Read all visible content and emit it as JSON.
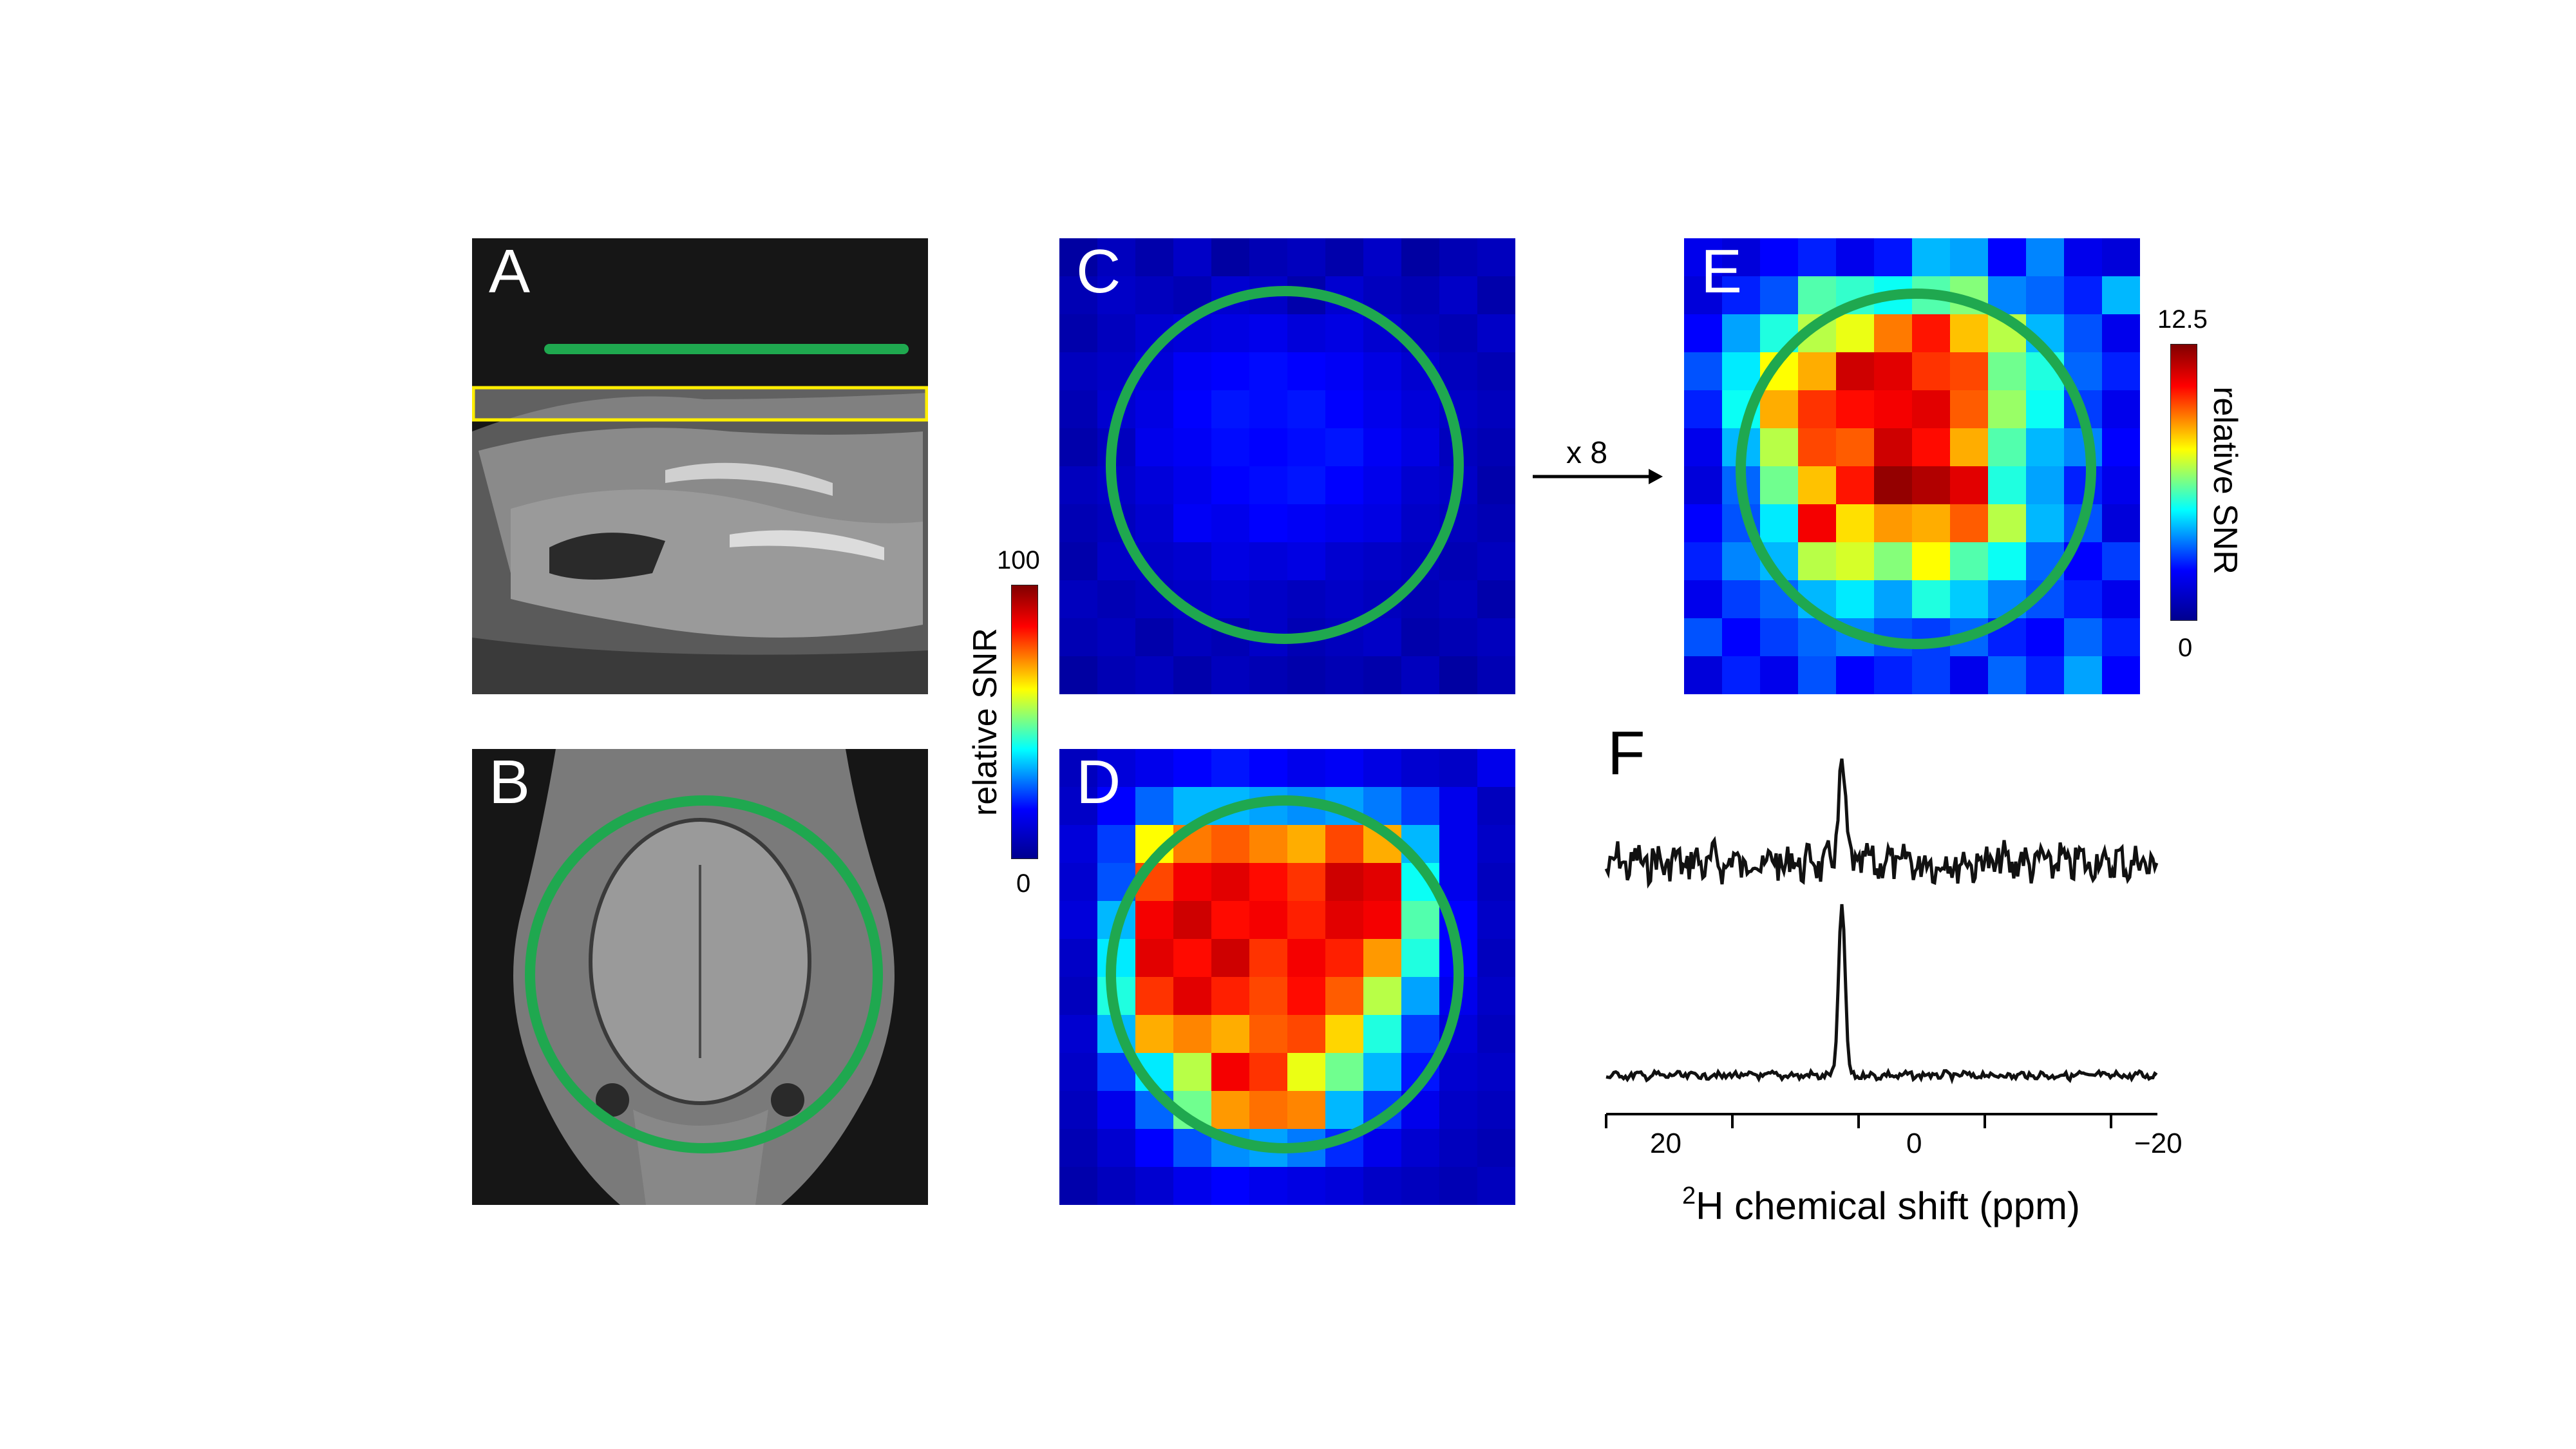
{
  "panels": {
    "a": {
      "letter": "A"
    },
    "b": {
      "letter": "B"
    },
    "c": {
      "letter": "C"
    },
    "d": {
      "letter": "D"
    },
    "e": {
      "letter": "E"
    },
    "f": {
      "letter": "F"
    }
  },
  "colorbar_left": {
    "title": "relative SNR",
    "max": "100",
    "min": "0"
  },
  "colorbar_right": {
    "title": "relative SNR",
    "max": "12.5",
    "min": "0"
  },
  "arrow_label": "x 8",
  "spectrum_axis": {
    "ticks": [
      "20",
      "0",
      "−20"
    ],
    "label_sup": "2",
    "label_text": "H chemical shift (ppm)"
  },
  "colors": {
    "overlay_circle": "#1fa84f",
    "slice_box": "#ffee00",
    "colormap": [
      "#00008f",
      "#0000ff",
      "#00ffff",
      "#ffff00",
      "#ff0000",
      "#800000"
    ]
  },
  "heatmaps": {
    "c": [
      [
        0.02,
        0.05,
        0.03,
        0.06,
        0.02,
        0.04,
        0.05,
        0.03,
        0.06,
        0.02,
        0.04,
        0.05
      ],
      [
        0.04,
        0.06,
        0.05,
        0.04,
        0.07,
        0.06,
        0.03,
        0.07,
        0.05,
        0.04,
        0.06,
        0.03
      ],
      [
        0.03,
        0.05,
        0.07,
        0.08,
        0.09,
        0.1,
        0.08,
        0.09,
        0.07,
        0.05,
        0.04,
        0.06
      ],
      [
        0.05,
        0.06,
        0.08,
        0.11,
        0.12,
        0.13,
        0.12,
        0.11,
        0.09,
        0.07,
        0.05,
        0.04
      ],
      [
        0.04,
        0.07,
        0.09,
        0.12,
        0.14,
        0.13,
        0.14,
        0.12,
        0.1,
        0.08,
        0.06,
        0.05
      ],
      [
        0.03,
        0.05,
        0.1,
        0.11,
        0.13,
        0.12,
        0.13,
        0.14,
        0.11,
        0.09,
        0.05,
        0.04
      ],
      [
        0.05,
        0.06,
        0.08,
        0.1,
        0.12,
        0.13,
        0.14,
        0.12,
        0.1,
        0.07,
        0.06,
        0.03
      ],
      [
        0.04,
        0.05,
        0.07,
        0.11,
        0.1,
        0.12,
        0.11,
        0.1,
        0.09,
        0.06,
        0.05,
        0.04
      ],
      [
        0.03,
        0.06,
        0.06,
        0.07,
        0.09,
        0.08,
        0.09,
        0.07,
        0.06,
        0.05,
        0.04,
        0.05
      ],
      [
        0.05,
        0.04,
        0.05,
        0.06,
        0.07,
        0.06,
        0.05,
        0.06,
        0.05,
        0.04,
        0.05,
        0.03
      ],
      [
        0.04,
        0.05,
        0.03,
        0.05,
        0.04,
        0.06,
        0.04,
        0.05,
        0.06,
        0.03,
        0.04,
        0.05
      ],
      [
        0.02,
        0.04,
        0.05,
        0.03,
        0.05,
        0.04,
        0.03,
        0.04,
        0.03,
        0.05,
        0.02,
        0.04
      ]
    ],
    "d": [
      [
        0.05,
        0.08,
        0.1,
        0.12,
        0.14,
        0.12,
        0.1,
        0.11,
        0.09,
        0.07,
        0.06,
        0.1
      ],
      [
        0.06,
        0.12,
        0.22,
        0.3,
        0.3,
        0.28,
        0.26,
        0.28,
        0.24,
        0.18,
        0.1,
        0.05
      ],
      [
        0.08,
        0.18,
        0.62,
        0.75,
        0.78,
        0.74,
        0.7,
        0.8,
        0.7,
        0.3,
        0.1,
        0.06
      ],
      [
        0.07,
        0.2,
        0.8,
        0.88,
        0.9,
        0.86,
        0.82,
        0.92,
        0.9,
        0.38,
        0.1,
        0.05
      ],
      [
        0.08,
        0.3,
        0.88,
        0.92,
        0.86,
        0.88,
        0.84,
        0.9,
        0.88,
        0.45,
        0.12,
        0.06
      ],
      [
        0.06,
        0.35,
        0.9,
        0.86,
        0.92,
        0.82,
        0.88,
        0.84,
        0.72,
        0.4,
        0.12,
        0.05
      ],
      [
        0.05,
        0.4,
        0.82,
        0.9,
        0.84,
        0.8,
        0.86,
        0.78,
        0.55,
        0.28,
        0.1,
        0.06
      ],
      [
        0.07,
        0.3,
        0.7,
        0.74,
        0.7,
        0.78,
        0.8,
        0.66,
        0.4,
        0.18,
        0.08,
        0.05
      ],
      [
        0.06,
        0.18,
        0.35,
        0.55,
        0.88,
        0.82,
        0.6,
        0.48,
        0.3,
        0.14,
        0.07,
        0.06
      ],
      [
        0.05,
        0.1,
        0.22,
        0.48,
        0.72,
        0.76,
        0.74,
        0.3,
        0.18,
        0.1,
        0.06,
        0.05
      ],
      [
        0.04,
        0.07,
        0.12,
        0.2,
        0.26,
        0.28,
        0.24,
        0.16,
        0.1,
        0.07,
        0.05,
        0.04
      ],
      [
        0.03,
        0.05,
        0.07,
        0.1,
        0.12,
        0.1,
        0.09,
        0.08,
        0.06,
        0.05,
        0.04,
        0.05
      ]
    ],
    "e": [
      [
        0.1,
        0.08,
        0.12,
        0.15,
        0.1,
        0.14,
        0.3,
        0.28,
        0.12,
        0.25,
        0.1,
        0.08
      ],
      [
        0.08,
        0.15,
        0.2,
        0.45,
        0.42,
        0.38,
        0.45,
        0.5,
        0.25,
        0.22,
        0.15,
        0.3
      ],
      [
        0.12,
        0.28,
        0.4,
        0.55,
        0.6,
        0.75,
        0.85,
        0.68,
        0.55,
        0.3,
        0.2,
        0.1
      ],
      [
        0.2,
        0.35,
        0.62,
        0.7,
        0.92,
        0.9,
        0.82,
        0.8,
        0.48,
        0.4,
        0.22,
        0.15
      ],
      [
        0.15,
        0.38,
        0.7,
        0.82,
        0.86,
        0.88,
        0.9,
        0.78,
        0.52,
        0.38,
        0.18,
        0.1
      ],
      [
        0.1,
        0.3,
        0.55,
        0.8,
        0.78,
        0.92,
        0.86,
        0.7,
        0.45,
        0.3,
        0.25,
        0.12
      ],
      [
        0.08,
        0.22,
        0.48,
        0.68,
        0.85,
        0.98,
        0.95,
        0.9,
        0.4,
        0.28,
        0.15,
        0.1
      ],
      [
        0.12,
        0.2,
        0.35,
        0.88,
        0.65,
        0.72,
        0.7,
        0.78,
        0.55,
        0.3,
        0.2,
        0.08
      ],
      [
        0.15,
        0.25,
        0.3,
        0.55,
        0.58,
        0.5,
        0.62,
        0.45,
        0.38,
        0.22,
        0.12,
        0.18
      ],
      [
        0.1,
        0.18,
        0.22,
        0.3,
        0.35,
        0.28,
        0.4,
        0.32,
        0.25,
        0.2,
        0.15,
        0.1
      ],
      [
        0.2,
        0.12,
        0.18,
        0.22,
        0.25,
        0.2,
        0.18,
        0.22,
        0.15,
        0.12,
        0.22,
        0.15
      ],
      [
        0.08,
        0.15,
        0.1,
        0.2,
        0.12,
        0.15,
        0.18,
        0.1,
        0.22,
        0.15,
        0.28,
        0.12
      ]
    ]
  }
}
